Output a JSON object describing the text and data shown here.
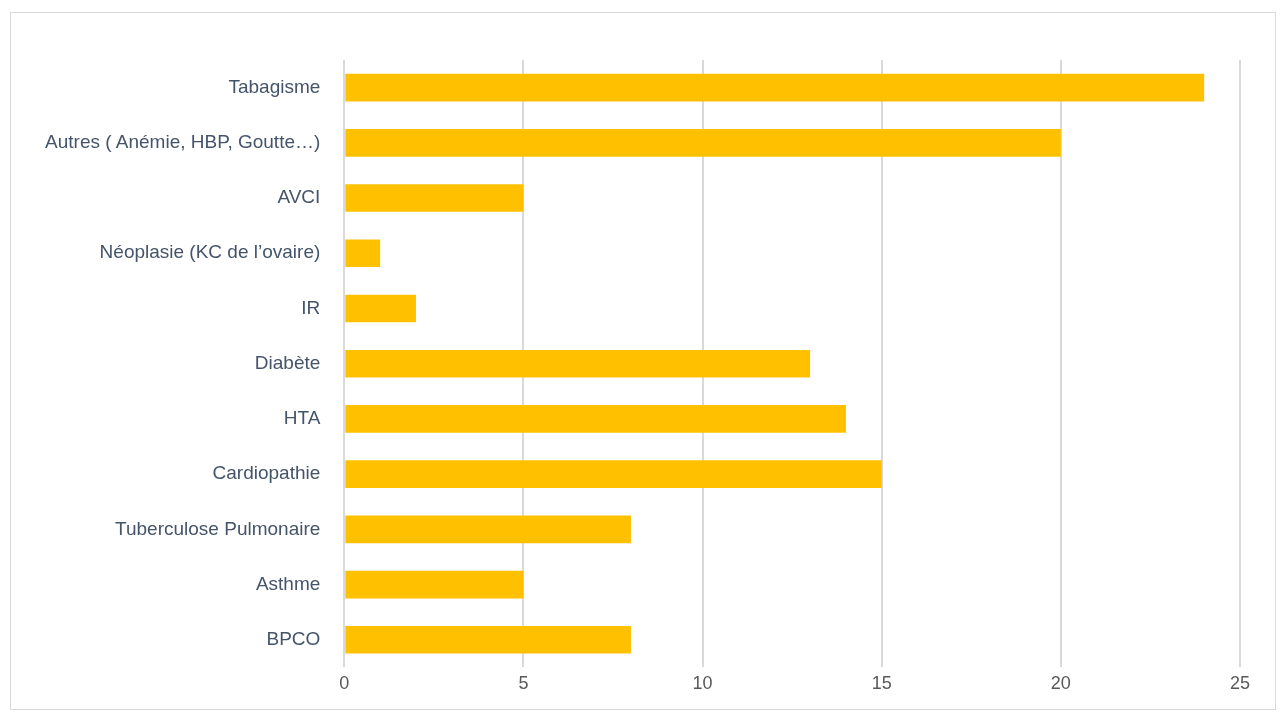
{
  "chart_data": {
    "type": "bar",
    "orientation": "horizontal",
    "categories": [
      "Tabagisme",
      "Autres ( Anémie, HBP, Goutte…)",
      "AVCI",
      "Néoplasie (KC de l’ovaire)",
      "IR",
      "Diabète",
      "HTA",
      "Cardiopathie",
      "Tuberculose Pulmonaire",
      "Asthme",
      "BPCO"
    ],
    "values": [
      24,
      20,
      5,
      1,
      2,
      13,
      14,
      15,
      8,
      5,
      8
    ],
    "color": "#ffc000",
    "xlim": [
      0,
      25
    ],
    "xticks": [
      0,
      5,
      10,
      15,
      20,
      25
    ],
    "grid": "x",
    "legend": false
  }
}
